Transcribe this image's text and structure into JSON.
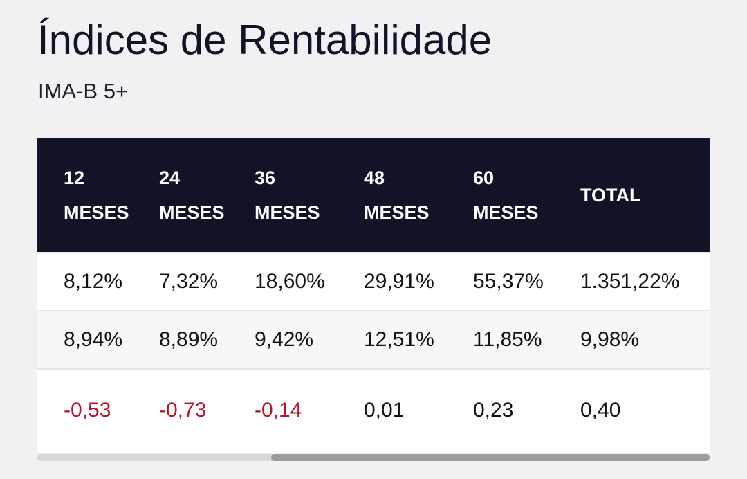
{
  "page": {
    "title": "Índices de Rentabilidade",
    "subtitle": "IMA-B 5+"
  },
  "table": {
    "headers": [
      {
        "line1": "12",
        "line2": "MESES"
      },
      {
        "line1": "24",
        "line2": "MESES"
      },
      {
        "line1": "36",
        "line2": "MESES"
      },
      {
        "line1": "48",
        "line2": "MESES"
      },
      {
        "line1": "60",
        "line2": "MESES"
      },
      {
        "line1": "TOTAL",
        "line2": ""
      }
    ],
    "rows": [
      [
        "8,12%",
        "7,32%",
        "18,60%",
        "29,91%",
        "55,37%",
        "1.351,22%"
      ],
      [
        "8,94%",
        "8,89%",
        "9,42%",
        "12,51%",
        "11,85%",
        "9,98%"
      ],
      [
        "-0,53",
        "-0,73",
        "-0,14",
        "0,01",
        "0,23",
        "0,40"
      ]
    ]
  },
  "colors": {
    "header_background": "#111427",
    "header_text": "#ffffff",
    "negative_value": "#b3162b",
    "page_background": "#f1f1f3"
  },
  "scrollbar": {
    "position_fraction": 0.35
  }
}
